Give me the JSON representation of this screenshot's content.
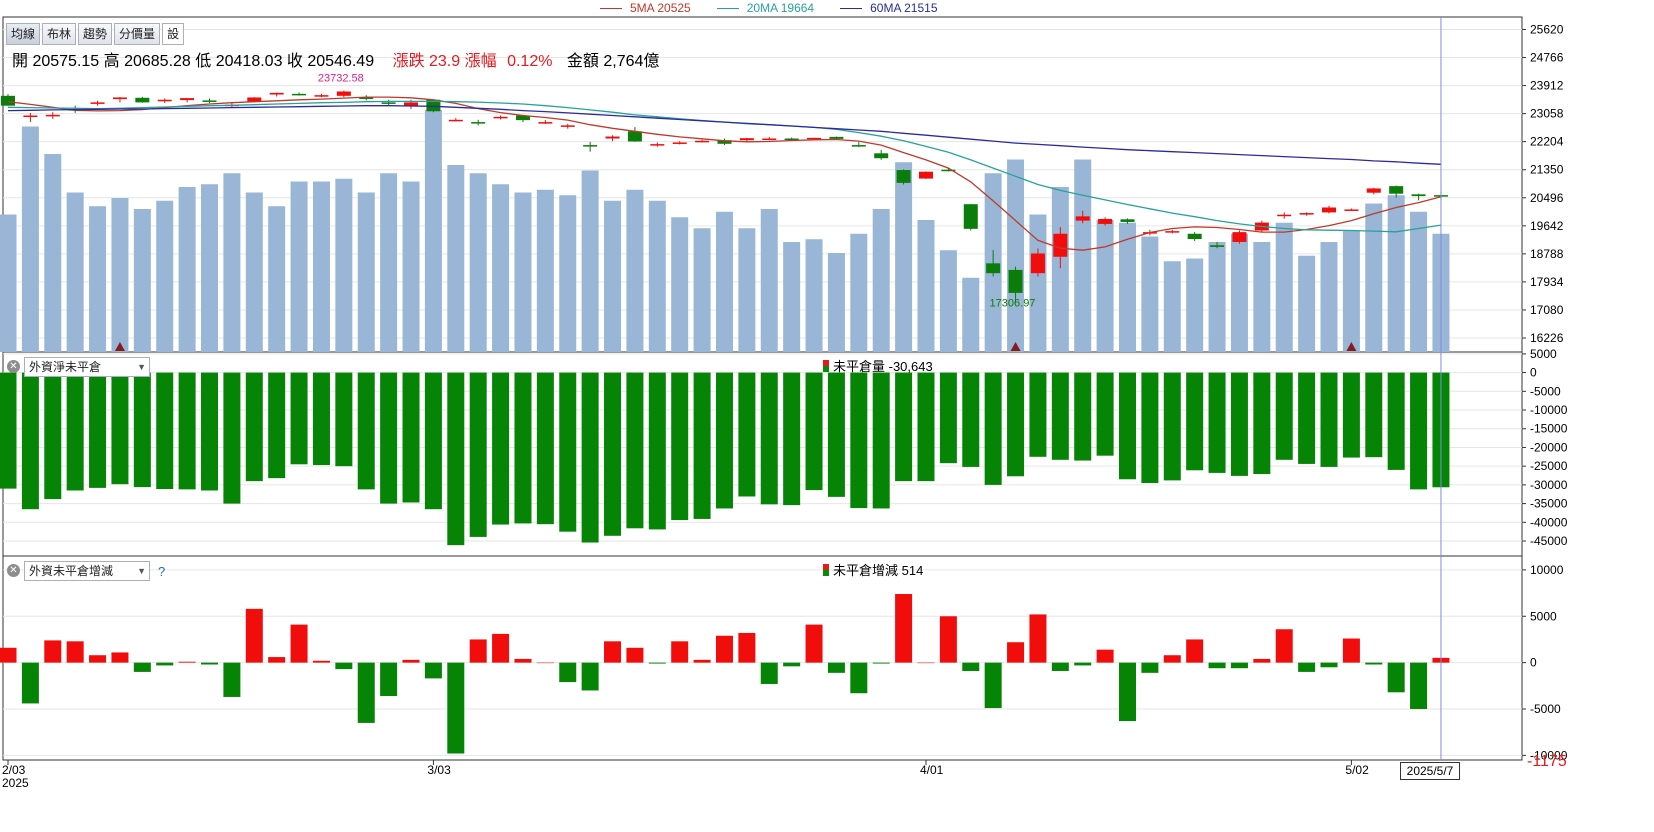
{
  "legend": [
    {
      "label": "5MA 20525",
      "color": "#c0392b"
    },
    {
      "label": "20MA 19664",
      "color": "#27a29b"
    },
    {
      "label": "60MA 21515",
      "color": "#2b2b9e"
    }
  ],
  "toolbar": {
    "buttons": [
      "均線",
      "布林",
      "趨勢",
      "分價量",
      "設"
    ]
  },
  "ohlc": {
    "open": "開 20575.15",
    "high": "高 20685.28",
    "low": "低 20418.03",
    "close": "收 20546.49",
    "change": "漲跌 23.9",
    "pct_label": "漲幅",
    "pct": "0.12%",
    "amount": "金額 2,764億"
  },
  "panel2": {
    "selector": "外資淨未平倉",
    "title": "未平倉量 -30,643"
  },
  "panel3": {
    "selector": "外資未平倉增減",
    "help": "?",
    "title": "未平倉增減 514"
  },
  "annotations": {
    "max_label": "23732.58",
    "min_label": "17306.97"
  },
  "date_box": "2025/5/7",
  "corner_value": "-1175",
  "colors": {
    "up": "#f20d0d",
    "down": "#0a7d0a",
    "volume": "#99b6d6",
    "ma5": "#c0392b",
    "ma20": "#27a29b",
    "ma60": "#2b2b9e"
  },
  "chart_data": [
    {
      "type": "candlestick",
      "x_ticks": [
        {
          "index": 0,
          "label": "2/03",
          "sub": "2025"
        },
        {
          "index": 19,
          "label": "3/03"
        },
        {
          "index": 41,
          "label": "4/01"
        },
        {
          "index": 60,
          "label": "5/02"
        }
      ],
      "y_ticks": [
        25620,
        24766,
        23912,
        23058,
        22204,
        21350,
        20496,
        19642,
        18788,
        17934,
        17080,
        16226
      ],
      "ylim": [
        15800,
        26000
      ],
      "candles": [
        [
          23600,
          23650,
          23300,
          23300
        ],
        [
          23000,
          23080,
          22800,
          23000
        ],
        [
          23020,
          23100,
          22900,
          23020
        ],
        [
          23200,
          23300,
          23080,
          23150
        ],
        [
          23400,
          23450,
          23300,
          23400
        ],
        [
          23500,
          23560,
          23400,
          23550
        ],
        [
          23540,
          23570,
          23390,
          23400
        ],
        [
          23460,
          23520,
          23380,
          23480
        ],
        [
          23470,
          23530,
          23400,
          23530
        ],
        [
          23460,
          23520,
          23380,
          23420
        ],
        [
          23300,
          23380,
          23240,
          23330
        ],
        [
          23430,
          23560,
          23400,
          23550
        ],
        [
          23640,
          23700,
          23580,
          23690
        ],
        [
          23660,
          23700,
          23610,
          23650
        ],
        [
          23600,
          23660,
          23560,
          23620
        ],
        [
          23600,
          23760,
          23560,
          23732
        ],
        [
          23550,
          23620,
          23460,
          23520
        ],
        [
          23400,
          23480,
          23290,
          23390
        ],
        [
          23300,
          23480,
          23200,
          23400
        ],
        [
          23480,
          23490,
          23100,
          23130
        ],
        [
          22870,
          22920,
          22820,
          22870
        ],
        [
          22800,
          22870,
          22700,
          22760
        ],
        [
          22960,
          23000,
          22880,
          22960
        ],
        [
          23000,
          23020,
          22800,
          22860
        ],
        [
          22780,
          22860,
          22740,
          22800
        ],
        [
          22660,
          22750,
          22600,
          22700
        ],
        [
          22100,
          22200,
          21900,
          22080
        ],
        [
          22300,
          22400,
          22220,
          22360
        ],
        [
          22520,
          22650,
          22200,
          22210
        ],
        [
          22100,
          22180,
          22050,
          22130
        ],
        [
          22140,
          22220,
          22120,
          22180
        ],
        [
          22200,
          22260,
          22180,
          22230
        ],
        [
          22250,
          22300,
          22100,
          22140
        ],
        [
          22250,
          22320,
          22200,
          22310
        ],
        [
          22280,
          22350,
          22250,
          22300
        ],
        [
          22300,
          22330,
          22240,
          22260
        ],
        [
          22300,
          22320,
          22250,
          22320
        ],
        [
          22350,
          22360,
          22280,
          22290
        ],
        [
          22100,
          22190,
          22040,
          22060
        ],
        [
          21850,
          21950,
          21650,
          21700
        ],
        [
          21340,
          21360,
          20900,
          20950
        ],
        [
          21080,
          21300,
          21070,
          21290
        ],
        [
          21350,
          21400,
          21300,
          21340
        ],
        [
          20300,
          20300,
          19500,
          19550
        ],
        [
          18500,
          18900,
          18100,
          18200
        ],
        [
          18300,
          18400,
          17306,
          17600
        ],
        [
          18200,
          18950,
          18100,
          18800
        ],
        [
          18700,
          19600,
          18350,
          19400
        ],
        [
          19800,
          20100,
          19720,
          19930
        ],
        [
          19700,
          19900,
          19650,
          19850
        ],
        [
          19840,
          19870,
          19700,
          19760
        ],
        [
          19450,
          19520,
          19350,
          19450
        ],
        [
          19450,
          19520,
          19410,
          19480
        ],
        [
          19400,
          19450,
          19180,
          19240
        ],
        [
          19050,
          19150,
          18960,
          19000
        ],
        [
          19150,
          19500,
          19100,
          19450
        ],
        [
          19500,
          19800,
          19450,
          19740
        ],
        [
          19950,
          20050,
          19860,
          19980
        ],
        [
          20000,
          20050,
          19950,
          20030
        ],
        [
          20050,
          20250,
          20020,
          20200
        ],
        [
          20130,
          20170,
          20110,
          20140
        ],
        [
          20650,
          20800,
          20600,
          20780
        ],
        [
          20850,
          20870,
          20500,
          20620
        ],
        [
          20600,
          20620,
          20418,
          20546
        ],
        [
          20575,
          20685,
          20418,
          20546
        ]
      ],
      "ma5": [
        23420,
        23340,
        23250,
        23160,
        23140,
        23150,
        23180,
        23240,
        23300,
        23350,
        23390,
        23420,
        23450,
        23480,
        23500,
        23530,
        23560,
        23560,
        23540,
        23480,
        23370,
        23210,
        23090,
        23000,
        22940,
        22860,
        22720,
        22610,
        22520,
        22430,
        22350,
        22290,
        22230,
        22200,
        22210,
        22240,
        22260,
        22270,
        22220,
        22100,
        21870,
        21650,
        21400,
        20980,
        20400,
        19800,
        19200,
        18960,
        18900,
        19000,
        19230,
        19440,
        19560,
        19610,
        19590,
        19530,
        19450,
        19450,
        19530,
        19650,
        19800,
        20010,
        20200,
        20350,
        20525
      ],
      "ma20": [
        23250,
        23240,
        23230,
        23220,
        23210,
        23220,
        23240,
        23260,
        23280,
        23300,
        23310,
        23330,
        23350,
        23370,
        23390,
        23400,
        23420,
        23430,
        23430,
        23430,
        23420,
        23410,
        23380,
        23350,
        23300,
        23240,
        23170,
        23100,
        23020,
        22960,
        22900,
        22850,
        22800,
        22750,
        22720,
        22680,
        22640,
        22580,
        22480,
        22370,
        22230,
        22060,
        21880,
        21650,
        21400,
        21150,
        20900,
        20720,
        20570,
        20430,
        20290,
        20160,
        20030,
        19920,
        19800,
        19700,
        19620,
        19560,
        19520,
        19510,
        19500,
        19480,
        19460,
        19560,
        19664
      ],
      "ma60": [
        23150,
        23160,
        23170,
        23180,
        23190,
        23200,
        23200,
        23210,
        23220,
        23230,
        23240,
        23250,
        23260,
        23270,
        23280,
        23290,
        23300,
        23300,
        23290,
        23280,
        23250,
        23220,
        23190,
        23150,
        23120,
        23080,
        23040,
        23000,
        22960,
        22920,
        22880,
        22840,
        22800,
        22760,
        22720,
        22680,
        22640,
        22600,
        22560,
        22520,
        22460,
        22400,
        22340,
        22280,
        22220,
        22160,
        22120,
        22080,
        22040,
        22000,
        21960,
        21930,
        21900,
        21870,
        21840,
        21810,
        21780,
        21750,
        21720,
        21690,
        21660,
        21620,
        21590,
        21550,
        21515
      ],
      "volume_scale": [
        0,
        100
      ],
      "volume": [
        50,
        82,
        72,
        58,
        53,
        56,
        52,
        55,
        60,
        61,
        65,
        58,
        53,
        62,
        62,
        63,
        58,
        65,
        62,
        88,
        68,
        65,
        61,
        58,
        59,
        57,
        66,
        55,
        59,
        55,
        49,
        45,
        51,
        45,
        52,
        40,
        41,
        36,
        43,
        52,
        69,
        48,
        37,
        27,
        65,
        70,
        50,
        60,
        70,
        48,
        47,
        42,
        33,
        34,
        40,
        43,
        40,
        47,
        35,
        40,
        44,
        54,
        57,
        51,
        43
      ],
      "markers": [
        5,
        45,
        60
      ]
    },
    {
      "type": "bar",
      "title": "未平倉量 -30,643",
      "y_ticks": [
        5000,
        0,
        -5000,
        -10000,
        -15000,
        -20000,
        -25000,
        -30000,
        -35000,
        -40000,
        -45000
      ],
      "ylim": [
        -49000,
        5500
      ],
      "values": [
        -31000,
        -36500,
        -33800,
        -31500,
        -30800,
        -29800,
        -30600,
        -31100,
        -31200,
        -31500,
        -35000,
        -29000,
        -28200,
        -24500,
        -24700,
        -25000,
        -31200,
        -35000,
        -34700,
        -36500,
        -46100,
        -43900,
        -40600,
        -40300,
        -40500,
        -42500,
        -45400,
        -43600,
        -41600,
        -41900,
        -39400,
        -39100,
        -36300,
        -33100,
        -35200,
        -35400,
        -31400,
        -33200,
        -36200,
        -36300,
        -29000,
        -29000,
        -24200,
        -25200,
        -30000,
        -27700,
        -22500,
        -23300,
        -23500,
        -22200,
        -28500,
        -29500,
        -28800,
        -26100,
        -26800,
        -27600,
        -27100,
        -23300,
        -24400,
        -25200,
        -22700,
        -22600,
        -26000,
        -31200,
        -30643
      ]
    },
    {
      "type": "bar",
      "title": "未平倉增減 514",
      "y_ticks": [
        10000,
        5000,
        0,
        -5000,
        -10000
      ],
      "ylim": [
        -10500,
        11500
      ],
      "values": [
        1600,
        -4400,
        2400,
        2300,
        800,
        1100,
        -1000,
        -300,
        100,
        -200,
        -3700,
        5800,
        600,
        4100,
        200,
        -700,
        -6500,
        -3600,
        300,
        -1700,
        -9800,
        2500,
        3100,
        400,
        0,
        -2100,
        -3000,
        2300,
        1600,
        -100,
        2300,
        300,
        2900,
        3200,
        -2300,
        -400,
        4100,
        -1100,
        -3300,
        -100,
        7400,
        0,
        5000,
        -900,
        -4900,
        2200,
        5200,
        -900,
        -300,
        1400,
        -6300,
        -1100,
        800,
        2500,
        -600,
        -600,
        400,
        3600,
        -1000,
        -500,
        2600,
        -200,
        -3200,
        -5000,
        514
      ]
    }
  ]
}
